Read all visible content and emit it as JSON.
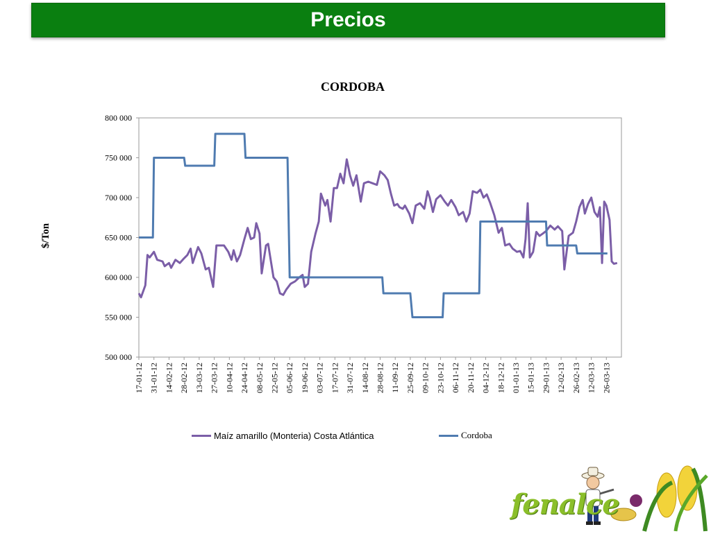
{
  "header": {
    "title": "Precios"
  },
  "brand": {
    "name": "fenalce"
  },
  "colors": {
    "banner": "#0a7f10",
    "series_maiz": "#7b5ea7",
    "series_cordoba": "#4f7bb0"
  },
  "chart_data": {
    "type": "line",
    "title": "CORDOBA",
    "xlabel": "",
    "ylabel": "$/Ton",
    "ylim": [
      500000,
      800000
    ],
    "y_ticks": [
      500000,
      550000,
      600000,
      650000,
      700000,
      750000,
      800000
    ],
    "y_tick_labels": [
      "500 000",
      "550 000",
      "600 000",
      "650 000",
      "700 000",
      "750 000",
      "800 000"
    ],
    "x_tick_labels": [
      "17-01-12",
      "31-01-12",
      "14-02-12",
      "28-02-12",
      "13-03-12",
      "27-03-12",
      "10-04-12",
      "24-04-12",
      "08-05-12",
      "22-05-12",
      "05-06-12",
      "19-06-12",
      "03-07-12",
      "17-07-12",
      "31-07-12",
      "14-08-12",
      "28-08-12",
      "11-09-12",
      "25-09-12",
      "09-10-12",
      "23-10-12",
      "06-11-12",
      "20-11-12",
      "04-12-12",
      "18-12-12",
      "01-01-13",
      "15-01-13",
      "29-01-13",
      "12-02-13",
      "26-02-13",
      "12-03-13",
      "26-03-13"
    ],
    "legend_position": "bottom",
    "grid": false,
    "series": [
      {
        "name": "Maíz amarillo (Monteria) Costa Atlántica",
        "color": "#7b5ea7",
        "points": [
          [
            "17-01-12",
            580000
          ],
          [
            "19-01-12",
            575000
          ],
          [
            "23-01-12",
            590000
          ],
          [
            "25-01-12",
            628000
          ],
          [
            "27-01-12",
            625000
          ],
          [
            "31-01-12",
            632000
          ],
          [
            "03-02-12",
            622000
          ],
          [
            "08-02-12",
            620000
          ],
          [
            "10-02-12",
            614000
          ],
          [
            "14-02-12",
            618000
          ],
          [
            "16-02-12",
            612000
          ],
          [
            "20-02-12",
            622000
          ],
          [
            "24-02-12",
            618000
          ],
          [
            "28-02-12",
            624000
          ],
          [
            "02-03-12",
            628000
          ],
          [
            "05-03-12",
            636000
          ],
          [
            "07-03-12",
            618000
          ],
          [
            "12-03-12",
            638000
          ],
          [
            "15-03-12",
            630000
          ],
          [
            "19-03-12",
            610000
          ],
          [
            "22-03-12",
            612000
          ],
          [
            "26-03-12",
            588000
          ],
          [
            "29-03-12",
            640000
          ],
          [
            "05-04-12",
            640000
          ],
          [
            "09-04-12",
            632000
          ],
          [
            "12-04-12",
            622000
          ],
          [
            "14-04-12",
            634000
          ],
          [
            "17-04-12",
            620000
          ],
          [
            "20-04-12",
            628000
          ],
          [
            "24-04-12",
            648000
          ],
          [
            "27-04-12",
            662000
          ],
          [
            "30-04-12",
            648000
          ],
          [
            "03-05-12",
            650000
          ],
          [
            "05-05-12",
            668000
          ],
          [
            "08-05-12",
            655000
          ],
          [
            "10-05-12",
            605000
          ],
          [
            "14-05-12",
            640000
          ],
          [
            "16-05-12",
            642000
          ],
          [
            "18-05-12",
            625000
          ],
          [
            "21-05-12",
            600000
          ],
          [
            "24-05-12",
            595000
          ],
          [
            "27-05-12",
            580000
          ],
          [
            "30-05-12",
            578000
          ],
          [
            "02-06-12",
            585000
          ],
          [
            "06-06-12",
            592000
          ],
          [
            "10-06-12",
            595000
          ],
          [
            "14-06-12",
            600000
          ],
          [
            "17-06-12",
            603000
          ],
          [
            "19-06-12",
            588000
          ],
          [
            "22-06-12",
            592000
          ],
          [
            "25-06-12",
            632000
          ],
          [
            "29-06-12",
            655000
          ],
          [
            "02-07-12",
            670000
          ],
          [
            "04-07-12",
            705000
          ],
          [
            "08-07-12",
            690000
          ],
          [
            "10-07-12",
            697000
          ],
          [
            "13-07-12",
            670000
          ],
          [
            "16-07-12",
            712000
          ],
          [
            "19-07-12",
            712000
          ],
          [
            "22-07-12",
            730000
          ],
          [
            "25-07-12",
            718000
          ],
          [
            "28-07-12",
            748000
          ],
          [
            "31-07-12",
            728000
          ],
          [
            "03-08-12",
            715000
          ],
          [
            "06-08-12",
            728000
          ],
          [
            "10-08-12",
            695000
          ],
          [
            "13-08-12",
            718000
          ],
          [
            "17-08-12",
            720000
          ],
          [
            "21-08-12",
            718000
          ],
          [
            "25-08-12",
            716000
          ],
          [
            "28-08-12",
            733000
          ],
          [
            "01-09-12",
            728000
          ],
          [
            "04-09-12",
            722000
          ],
          [
            "07-09-12",
            705000
          ],
          [
            "10-09-12",
            690000
          ],
          [
            "13-09-12",
            692000
          ],
          [
            "15-09-12",
            688000
          ],
          [
            "18-09-12",
            686000
          ],
          [
            "20-09-12",
            690000
          ],
          [
            "24-09-12",
            680000
          ],
          [
            "27-09-12",
            668000
          ],
          [
            "30-09-12",
            690000
          ],
          [
            "04-10-12",
            693000
          ],
          [
            "08-10-12",
            686000
          ],
          [
            "11-10-12",
            708000
          ],
          [
            "13-10-12",
            700000
          ],
          [
            "16-10-12",
            682000
          ],
          [
            "19-10-12",
            698000
          ],
          [
            "23-10-12",
            703000
          ],
          [
            "27-10-12",
            695000
          ],
          [
            "30-10-12",
            690000
          ],
          [
            "02-11-12",
            697000
          ],
          [
            "06-11-12",
            688000
          ],
          [
            "09-11-12",
            678000
          ],
          [
            "13-11-12",
            682000
          ],
          [
            "16-11-12",
            670000
          ],
          [
            "19-11-12",
            680000
          ],
          [
            "22-11-12",
            708000
          ],
          [
            "26-11-12",
            706000
          ],
          [
            "29-11-12",
            710000
          ],
          [
            "02-12-12",
            700000
          ],
          [
            "05-12-12",
            704000
          ],
          [
            "08-12-12",
            694000
          ],
          [
            "12-12-12",
            678000
          ],
          [
            "16-12-12",
            656000
          ],
          [
            "19-12-12",
            662000
          ],
          [
            "22-12-12",
            640000
          ],
          [
            "26-12-12",
            642000
          ],
          [
            "29-12-12",
            636000
          ],
          [
            "02-01-13",
            632000
          ],
          [
            "05-01-13",
            633000
          ],
          [
            "08-01-13",
            625000
          ],
          [
            "10-01-13",
            648000
          ],
          [
            "12-01-13",
            693000
          ],
          [
            "14-01-13",
            625000
          ],
          [
            "17-01-13",
            632000
          ],
          [
            "20-01-13",
            657000
          ],
          [
            "23-01-13",
            652000
          ],
          [
            "26-01-13",
            655000
          ],
          [
            "29-01-13",
            658000
          ],
          [
            "02-02-13",
            665000
          ],
          [
            "06-02-13",
            660000
          ],
          [
            "09-02-13",
            664000
          ],
          [
            "13-02-13",
            658000
          ],
          [
            "15-02-13",
            610000
          ],
          [
            "19-02-13",
            652000
          ],
          [
            "23-02-13",
            656000
          ],
          [
            "26-02-13",
            670000
          ],
          [
            "01-03-13",
            688000
          ],
          [
            "04-03-13",
            697000
          ],
          [
            "06-03-13",
            680000
          ],
          [
            "09-03-13",
            692000
          ],
          [
            "12-03-13",
            700000
          ],
          [
            "15-03-13",
            682000
          ],
          [
            "18-03-13",
            676000
          ],
          [
            "20-03-13",
            688000
          ],
          [
            "22-03-13",
            618000
          ],
          [
            "24-03-13",
            695000
          ],
          [
            "26-03-13",
            690000
          ],
          [
            "29-03-13",
            672000
          ],
          [
            "31-03-13",
            620000
          ],
          [
            "02-04-13",
            617000
          ],
          [
            "05-04-13",
            618000
          ]
        ]
      },
      {
        "name": "Cordoba",
        "color": "#4f7bb0",
        "points": [
          [
            "17-01-12",
            650000
          ],
          [
            "30-01-12",
            650000
          ],
          [
            "31-01-12",
            750000
          ],
          [
            "28-02-12",
            750000
          ],
          [
            "29-02-12",
            740000
          ],
          [
            "27-03-12",
            740000
          ],
          [
            "28-03-12",
            780000
          ],
          [
            "24-04-12",
            780000
          ],
          [
            "25-04-12",
            750000
          ],
          [
            "03-06-12",
            750000
          ],
          [
            "05-06-12",
            600000
          ],
          [
            "30-08-12",
            600000
          ],
          [
            "31-08-12",
            580000
          ],
          [
            "25-09-12",
            580000
          ],
          [
            "27-09-12",
            550000
          ],
          [
            "25-10-12",
            550000
          ],
          [
            "26-10-12",
            580000
          ],
          [
            "28-11-12",
            580000
          ],
          [
            "29-11-12",
            670000
          ],
          [
            "29-01-13",
            670000
          ],
          [
            "30-01-13",
            640000
          ],
          [
            "26-02-13",
            640000
          ],
          [
            "27-02-13",
            630000
          ],
          [
            "27-03-13",
            630000
          ]
        ]
      }
    ]
  }
}
